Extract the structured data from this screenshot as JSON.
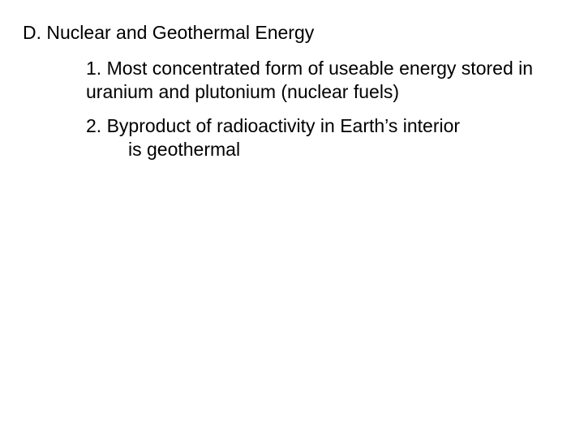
{
  "heading": "D. Nuclear and Geothermal Energy",
  "item1": "1. Most concentrated form of useable energy stored in uranium and plutonium (nuclear fuels)",
  "item2_line1": "2. Byproduct of radioactivity in Earth’s interior",
  "item2_line2": "is geothermal",
  "text_color": "#000000",
  "background_color": "#ffffff",
  "font_size": 23,
  "font_family": "Arial"
}
